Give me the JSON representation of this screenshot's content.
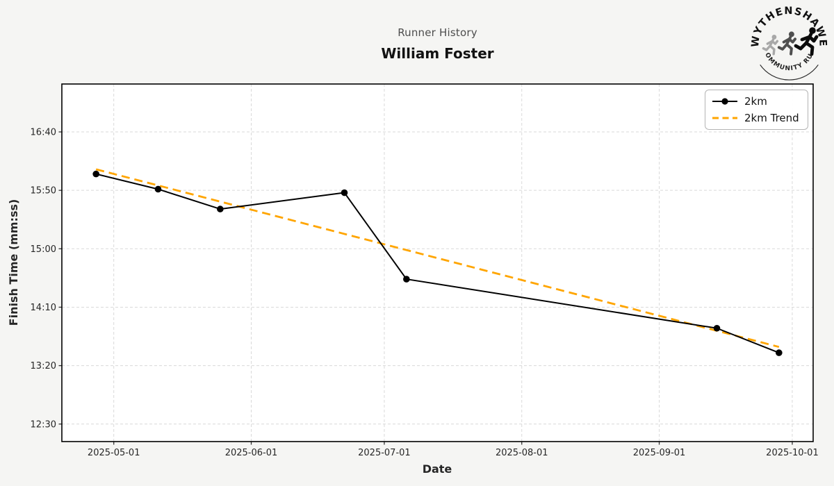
{
  "header": {
    "subtitle": "Runner History",
    "title": "William Foster"
  },
  "logo": {
    "top_text": "WYTHENSHAWE",
    "bottom_text": "COMMUNITY RUN"
  },
  "chart_data": {
    "type": "line",
    "title": "Runner History",
    "subtitle": "William Foster",
    "xlabel": "Date",
    "ylabel": "Finish Time (mm:ss)",
    "grid": true,
    "legend_position": "top-right",
    "x_ticks": [
      "2025-05-01",
      "2025-06-01",
      "2025-07-01",
      "2025-08-01",
      "2025-09-01",
      "2025-10-01"
    ],
    "y_ticks": [
      {
        "seconds": 1000,
        "label": "16:40"
      },
      {
        "seconds": 950,
        "label": "15:50"
      },
      {
        "seconds": 900,
        "label": "15:00"
      },
      {
        "seconds": 850,
        "label": "14:10"
      },
      {
        "seconds": 800,
        "label": "13:20"
      },
      {
        "seseconds_note": "",
        "seconds": 750,
        "label": "12:30"
      }
    ],
    "xlim": [
      "2025-04-19T07:00:00",
      "2025-10-05T17:00:00"
    ],
    "ylim_seconds": [
      735,
      1041
    ],
    "series": [
      {
        "name": "2km",
        "style": "solid-with-markers",
        "color": "#000000",
        "points": [
          {
            "date": "2025-04-27",
            "time": "16:04",
            "seconds": 964
          },
          {
            "date": "2025-05-11",
            "time": "15:51",
            "seconds": 951
          },
          {
            "date": "2025-05-25",
            "time": "15:34",
            "seconds": 934
          },
          {
            "date": "2025-06-22",
            "time": "15:48",
            "seconds": 948
          },
          {
            "date": "2025-07-06",
            "time": "14:34",
            "seconds": 874
          },
          {
            "date": "2025-09-14",
            "time": "13:52",
            "seconds": 832
          },
          {
            "date": "2025-09-28",
            "time": "13:31",
            "seconds": 811
          }
        ]
      },
      {
        "name": "2km Trend",
        "style": "dashed",
        "color": "#FFA500",
        "points": [
          {
            "date": "2025-04-27",
            "time": "16:08",
            "seconds": 968
          },
          {
            "date": "2025-09-28",
            "time": "13:36",
            "seconds": 816
          }
        ]
      }
    ],
    "legend": [
      {
        "label": "2km"
      },
      {
        "label": "2km Trend"
      }
    ]
  },
  "colors": {
    "figure_background": "#f5f5f3",
    "plot_background": "#ffffff",
    "gridline": "#d9d9d9",
    "spine": "#000000",
    "tick_label": "#262626",
    "series_2km": "#000000",
    "series_trend": "#FFA500",
    "subtitle_text": "#4d4d4d",
    "title_text": "#121212"
  }
}
